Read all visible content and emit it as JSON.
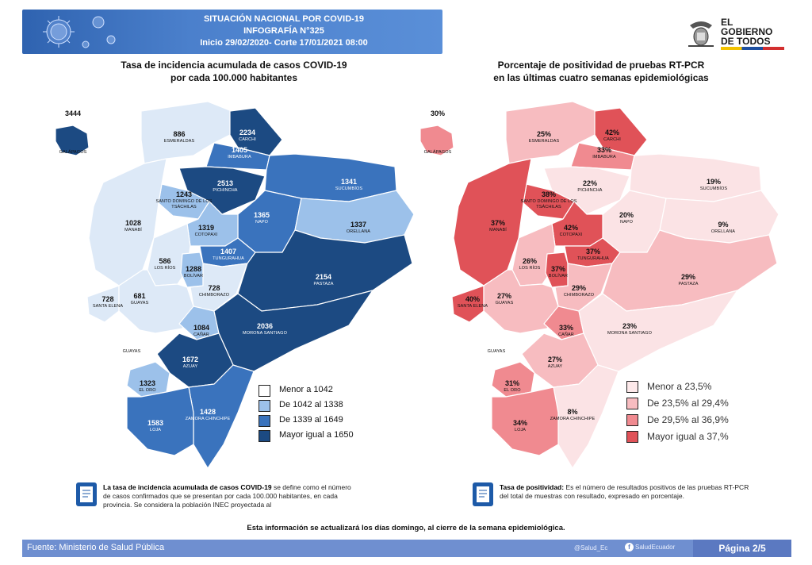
{
  "header": {
    "line1": "SITUACIÓN NACIONAL POR  COVID-19",
    "line2": "INFOGRAFÍA N°325",
    "line3": "Inicio 29/02/2020- Corte 17/01/2021 08:00"
  },
  "logo": {
    "line1": "EL",
    "line2": "GOBIERNO",
    "line3": "DE TODOS"
  },
  "left_map": {
    "title_line1": "Tasa de incidencia acumulada de casos COVID-19",
    "title_line2": "por cada 100.000 habitantes",
    "colors": {
      "low": "#dde9f7",
      "mid_low": "#9cc1ea",
      "mid_high": "#3a73bd",
      "high": "#1c4a82"
    },
    "regions": [
      {
        "name": "GALÁPAGOS",
        "value": "3444",
        "class": "high"
      },
      {
        "name": "ESMERALDAS",
        "value": "886",
        "class": "low"
      },
      {
        "name": "CARCHI",
        "value": "2234",
        "class": "high"
      },
      {
        "name": "IMBABURA",
        "value": "1405",
        "class": "mid_high"
      },
      {
        "name": "PICHINCHA",
        "value": "2513",
        "class": "high"
      },
      {
        "name": "SANTO DOMINGO DE LOS TSÁCHILAS",
        "value": "1243",
        "class": "mid_low"
      },
      {
        "name": "SUCUMBÍOS",
        "value": "1341",
        "class": "mid_high"
      },
      {
        "name": "NAPO",
        "value": "1365",
        "class": "mid_high"
      },
      {
        "name": "ORELLANA",
        "value": "1337",
        "class": "mid_low"
      },
      {
        "name": "MANABÍ",
        "value": "1028",
        "class": "low"
      },
      {
        "name": "COTOPAXI",
        "value": "1319",
        "class": "mid_low"
      },
      {
        "name": "TUNGURAHUA",
        "value": "1407",
        "class": "mid_high"
      },
      {
        "name": "LOS RÍOS",
        "value": "586",
        "class": "low"
      },
      {
        "name": "BOLÍVAR",
        "value": "1288",
        "class": "mid_low"
      },
      {
        "name": "CHIMBORAZO",
        "value": "728",
        "class": "low"
      },
      {
        "name": "PASTAZA",
        "value": "2154",
        "class": "high"
      },
      {
        "name": "SANTA ELENA",
        "value": "728",
        "class": "low"
      },
      {
        "name": "GUAYAS",
        "value": "681",
        "class": "low"
      },
      {
        "name": "CAÑAR",
        "value": "1084",
        "class": "mid_low"
      },
      {
        "name": "MORONA SANTIAGO",
        "value": "2036",
        "class": "high"
      },
      {
        "name": "AZUAY",
        "value": "1672",
        "class": "high"
      },
      {
        "name": "EL ORO",
        "value": "1323",
        "class": "mid_low"
      },
      {
        "name": "ZAMORA CHINCHIPE",
        "value": "1428",
        "class": "mid_high"
      },
      {
        "name": "LOJA",
        "value": "1583",
        "class": "mid_high"
      }
    ],
    "extra_label": "GUAYAS",
    "legend": [
      "Menor a 1042",
      "De 1042 al 1338",
      "De 1339 al 1649",
      "Mayor igual a 1650"
    ]
  },
  "right_map": {
    "title_line1": "Porcentaje de positividad de pruebas RT-PCR",
    "title_line2": "en las últimas cuatro semanas epidemiológicas",
    "colors": {
      "low": "#fbe3e5",
      "mid_low": "#f7bcc0",
      "mid_high": "#f08a90",
      "high": "#e05258"
    },
    "regions": [
      {
        "name": "GALÁPAGOS",
        "value": "30%",
        "class": "mid_high"
      },
      {
        "name": "ESMERALDAS",
        "value": "25%",
        "class": "mid_low"
      },
      {
        "name": "CARCHI",
        "value": "42%",
        "class": "high"
      },
      {
        "name": "IMBABURA",
        "value": "33%",
        "class": "mid_high"
      },
      {
        "name": "PICHINCHA",
        "value": "22%",
        "class": "low"
      },
      {
        "name": "SANTO DOMINGO DE LOS TSÁCHILAS",
        "value": "38%",
        "class": "high"
      },
      {
        "name": "SUCUMBÍOS",
        "value": "19%",
        "class": "low"
      },
      {
        "name": "NAPO",
        "value": "20%",
        "class": "low"
      },
      {
        "name": "ORELLANA",
        "value": "9%",
        "class": "low"
      },
      {
        "name": "MANABÍ",
        "value": "37%",
        "class": "high"
      },
      {
        "name": "COTOPAXI",
        "value": "42%",
        "class": "high"
      },
      {
        "name": "TUNGURAHUA",
        "value": "37%",
        "class": "high"
      },
      {
        "name": "LOS RÍOS",
        "value": "26%",
        "class": "mid_low"
      },
      {
        "name": "BOLÍVAR",
        "value": "37%",
        "class": "high"
      },
      {
        "name": "CHIMBORAZO",
        "value": "29%",
        "class": "mid_low"
      },
      {
        "name": "PASTAZA",
        "value": "29%",
        "class": "mid_low"
      },
      {
        "name": "SANTA ELENA",
        "value": "40%",
        "class": "high"
      },
      {
        "name": "GUAYAS",
        "value": "27%",
        "class": "mid_low"
      },
      {
        "name": "CAÑAR",
        "value": "33%",
        "class": "mid_high"
      },
      {
        "name": "MORONA SANTIAGO",
        "value": "23%",
        "class": "low"
      },
      {
        "name": "AZUAY",
        "value": "27%",
        "class": "mid_low"
      },
      {
        "name": "EL ORO",
        "value": "31%",
        "class": "mid_high"
      },
      {
        "name": "ZAMORA CHINCHIPE",
        "value": "8%",
        "class": "low"
      },
      {
        "name": "LOJA",
        "value": "34%",
        "class": "mid_high"
      }
    ],
    "extra_label": "GUAYAS",
    "legend": [
      "Menor a 23,5%",
      "De 23,5% al 29,4%",
      "De 29,5% al 36,9%",
      "Mayor igual a 37,%"
    ]
  },
  "notes": {
    "left_bold": "La tasa de incidencia acumulada de casos COVID-19",
    "left_text": " se define como el número de casos confirmados que se presentan por cada 100.000 habitantes, en cada provincia. Se considera la población INEC proyectada al",
    "right_bold": "Tasa de positividad:",
    "right_text": " Es el número de resultados positivos de las pruebas RT-PCR del total de muestras con resultado, expresado en porcentaje."
  },
  "footer": {
    "update_note": "Esta información se actualizará los días domingo, al cierre de la semana epidemiológica.",
    "source_label": "Fuente:",
    "source_value": "Ministerio de Salud Pública",
    "twitter": "@Salud_Ec",
    "facebook": "SaludEcuador",
    "page": "Página 2/5"
  }
}
